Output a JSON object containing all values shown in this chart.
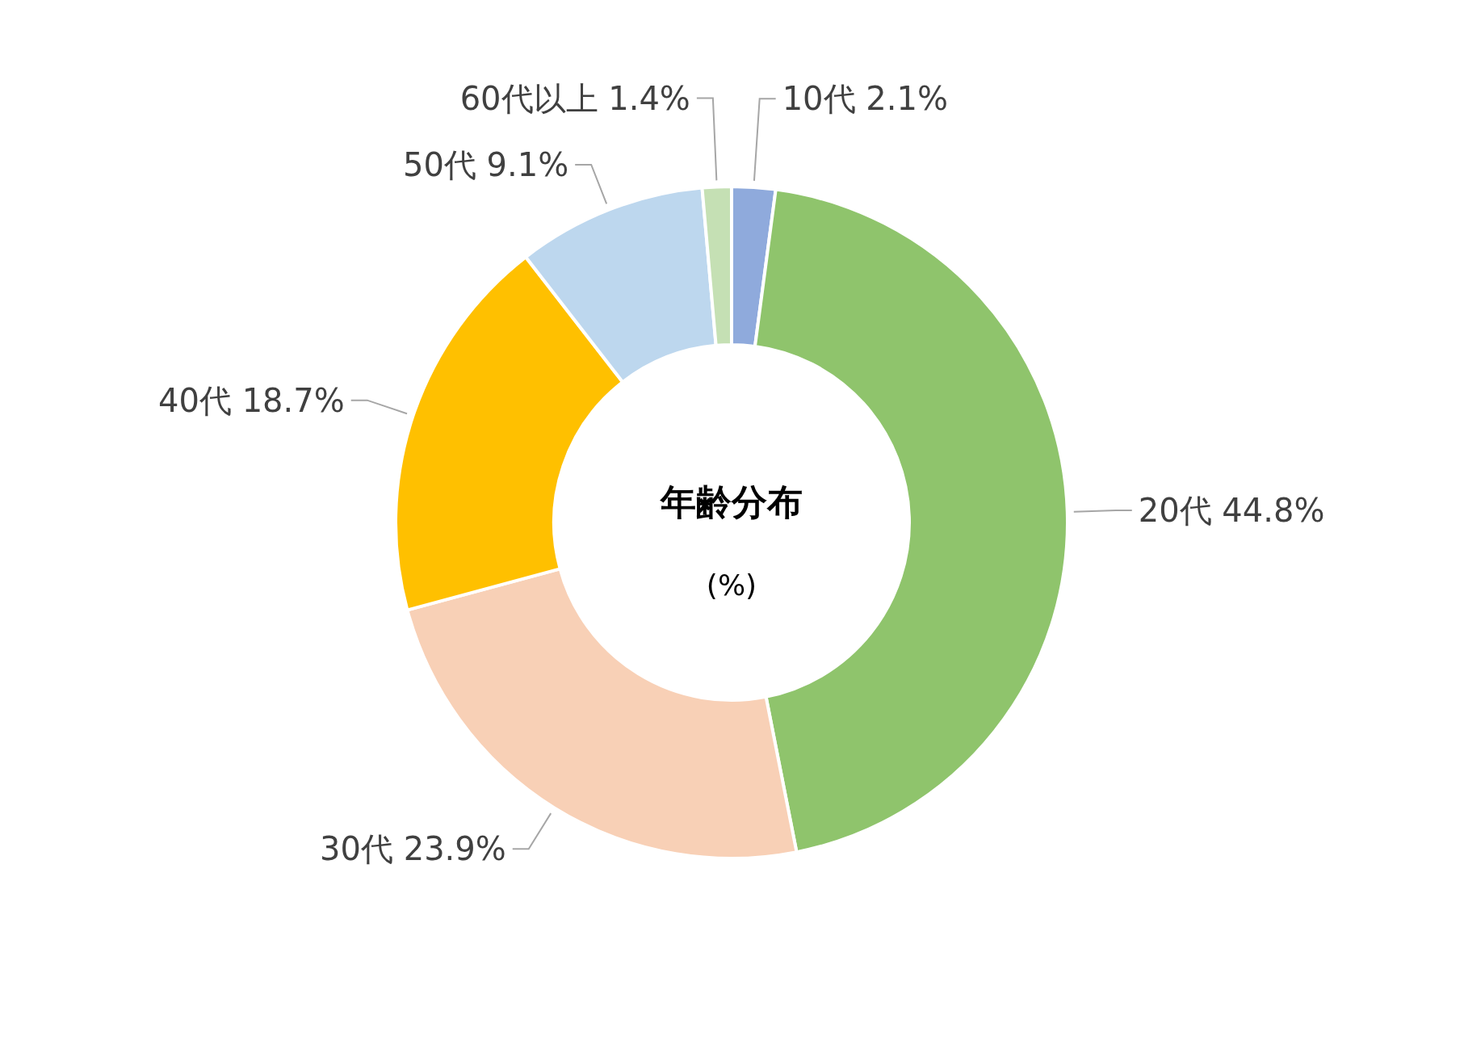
{
  "chart_data": {
    "type": "donut",
    "title": "年齢分布",
    "subtitle": "(%)",
    "categories": [
      "10代",
      "20代",
      "30代",
      "40代",
      "50代",
      "60代以上"
    ],
    "values": [
      2.1,
      44.8,
      23.9,
      18.7,
      9.1,
      1.4
    ],
    "value_labels": [
      "2.1%",
      "44.8%",
      "23.9%",
      "18.7%",
      "9.1%",
      "1.4%"
    ],
    "colors": [
      "#8faadc",
      "#8fc46c",
      "#f8d0b6",
      "#ffc000",
      "#bdd7ee",
      "#c5e0b4"
    ],
    "legend": false
  }
}
